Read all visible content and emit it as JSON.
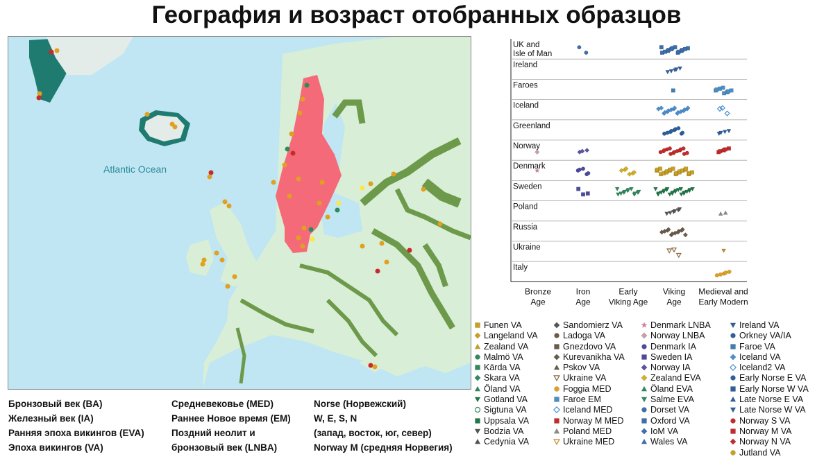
{
  "title": "География и возраст отобранных образцов",
  "map": {
    "ocean_label": "Atlantic Ocean",
    "colors": {
      "sea": "#bfe6f2",
      "land": "#d9eed7",
      "ice": "#e3ece8",
      "river": "#6c9a4a",
      "scandinavia": "#f56a78",
      "greenland_coast": "#1f7a70"
    }
  },
  "period_legend": {
    "col1": [
      "Бронзовый век (BA)",
      "Железный век (IA)",
      "Ранняя эпоха викингов (EVA)",
      "Эпоха викингов (VA)"
    ],
    "col2": [
      "Средневековье (MED)",
      "Раннее Новое время (EM)",
      "Поздний неолит и",
      "бронзовый век (LNBA)"
    ],
    "col3": [
      "Norse (Норвежский)",
      "W, E, S, N",
      "(запад, восток, юг, север)",
      "Norway M (средняя Норвегия)"
    ]
  },
  "chart_data": {
    "type": "scatter",
    "categories": [
      "Bronze Age",
      "Iron Age",
      "Early Viking Age",
      "Viking Age",
      "Medieval and Early Modern"
    ],
    "rows": [
      {
        "label": "UK and Isle of Man",
        "points": [
          {
            "period": "Iron Age",
            "count": 2,
            "color": "#3d6fae",
            "shape": "circle"
          },
          {
            "period": "Viking Age",
            "count": 14,
            "color": "#3d6fae",
            "shape": "square"
          }
        ]
      },
      {
        "label": "Ireland",
        "points": [
          {
            "period": "Viking Age",
            "count": 5,
            "color": "#2f5f9f",
            "shape": "triangle-down"
          }
        ]
      },
      {
        "label": "Faroes",
        "points": [
          {
            "period": "Viking Age",
            "count": 1,
            "color": "#3d7fb5",
            "shape": "square"
          },
          {
            "period": "Medieval and Early Modern",
            "count": 8,
            "color": "#4a90c8",
            "shape": "square"
          }
        ]
      },
      {
        "label": "Iceland",
        "points": [
          {
            "period": "Viking Age",
            "count": 16,
            "color": "#4a8fd0",
            "shape": "diamond"
          },
          {
            "period": "Medieval and Early Modern",
            "count": 3,
            "color": "#4a8fd0",
            "shape": "diamond-open"
          }
        ]
      },
      {
        "label": "Greenland",
        "points": [
          {
            "period": "Viking Age",
            "count": 9,
            "color": "#2c5f9e",
            "shape": "circle"
          },
          {
            "period": "Medieval and Early Modern",
            "count": 4,
            "color": "#2c5f9e",
            "shape": "triangle-down"
          }
        ]
      },
      {
        "label": "Norway",
        "points": [
          {
            "period": "Bronze Age",
            "count": 1,
            "color": "#c9a0a8",
            "shape": "diamond"
          },
          {
            "period": "Iron Age",
            "count": 3,
            "color": "#5b55a3",
            "shape": "diamond"
          },
          {
            "period": "Viking Age",
            "count": 14,
            "color": "#c62a2a",
            "shape": "circle"
          },
          {
            "period": "Medieval and Early Modern",
            "count": 5,
            "color": "#c62a2a",
            "shape": "square"
          }
        ]
      },
      {
        "label": "Denmark",
        "points": [
          {
            "period": "Bronze Age",
            "count": 1,
            "color": "#e27aa8",
            "shape": "star"
          },
          {
            "period": "Iron Age",
            "count": 5,
            "color": "#4d4aa0",
            "shape": "circle"
          },
          {
            "period": "Early Viking Age",
            "count": 6,
            "color": "#d4b020",
            "shape": "diamond"
          },
          {
            "period": "Viking Age",
            "count": 20,
            "color": "#c9a020",
            "shape": "square"
          }
        ]
      },
      {
        "label": "Sweden",
        "points": [
          {
            "period": "Iron Age",
            "count": 3,
            "color": "#4a4aa0",
            "shape": "square"
          },
          {
            "period": "Early Viking Age",
            "count": 12,
            "color": "#2f8a5c",
            "shape": "triangle-down"
          },
          {
            "period": "Viking Age",
            "count": 22,
            "color": "#1e7a45",
            "shape": "triangle-down"
          }
        ]
      },
      {
        "label": "Poland",
        "points": [
          {
            "period": "Viking Age",
            "count": 6,
            "color": "#555555",
            "shape": "triangle-down"
          },
          {
            "period": "Medieval and Early Modern",
            "count": 2,
            "color": "#8a8a8a",
            "shape": "triangle"
          }
        ]
      },
      {
        "label": "Russia",
        "points": [
          {
            "period": "Viking Age",
            "count": 12,
            "color": "#6a5a4a",
            "shape": "diamond"
          }
        ]
      },
      {
        "label": "Ukraine",
        "points": [
          {
            "period": "Viking Age",
            "count": 3,
            "color": "#8a6a3a",
            "shape": "triangle-down-open"
          },
          {
            "period": "Medieval and Early Modern",
            "count": 1,
            "color": "#c98a2a",
            "shape": "triangle-down"
          }
        ]
      },
      {
        "label": "Italy",
        "points": [
          {
            "period": "Medieval and Early Modern",
            "count": 5,
            "color": "#e0a020",
            "shape": "circle"
          }
        ]
      }
    ]
  },
  "group_legend": [
    [
      {
        "label": "Funen VA",
        "shape": "square",
        "color": "#c9a020"
      },
      {
        "label": "Langeland VA",
        "shape": "diamond",
        "color": "#c9a020"
      },
      {
        "label": "Zealand VA",
        "shape": "triangle",
        "color": "#c9a020"
      },
      {
        "label": "Malmö VA",
        "shape": "circle",
        "color": "#2f8a5c"
      },
      {
        "label": "Kärda VA",
        "shape": "square",
        "color": "#2f8a5c"
      },
      {
        "label": "Skara VA",
        "shape": "diamond",
        "color": "#2f8a5c"
      },
      {
        "label": "Öland VA",
        "shape": "triangle",
        "color": "#2f8a5c"
      },
      {
        "label": "Gotland VA",
        "shape": "triangle-down",
        "color": "#1e7a45"
      },
      {
        "label": "Sigtuna VA",
        "shape": "circle-open",
        "color": "#2f8a5c"
      },
      {
        "label": "Uppsala VA",
        "shape": "square",
        "color": "#1e7a45"
      },
      {
        "label": "Bodzia VA",
        "shape": "triangle-down",
        "color": "#555555"
      },
      {
        "label": "Cedynia VA",
        "shape": "triangle",
        "color": "#555555"
      }
    ],
    [
      {
        "label": "Sandomierz VA",
        "shape": "diamond",
        "color": "#555555"
      },
      {
        "label": "Ladoga VA",
        "shape": "circle",
        "color": "#6a5a4a"
      },
      {
        "label": "Gnezdovo VA",
        "shape": "square",
        "color": "#6a5a4a"
      },
      {
        "label": "Kurevanikha VA",
        "shape": "diamond",
        "color": "#6a5a4a"
      },
      {
        "label": "Pskov VA",
        "shape": "triangle",
        "color": "#6a5a4a"
      },
      {
        "label": "Ukraine VA",
        "shape": "triangle-down-open",
        "color": "#8a6a3a"
      },
      {
        "label": "Foggia MED",
        "shape": "circle",
        "color": "#e0a020"
      },
      {
        "label": "Faroe EM",
        "shape": "square",
        "color": "#4a90c8"
      },
      {
        "label": "Iceland MED",
        "shape": "diamond-open",
        "color": "#4a8fd0"
      },
      {
        "label": "Norway M MED",
        "shape": "square",
        "color": "#c62a2a"
      },
      {
        "label": "Poland MED",
        "shape": "triangle",
        "color": "#8a8a8a"
      },
      {
        "label": "Ukraine MED",
        "shape": "triangle-down-open",
        "color": "#c98a2a"
      }
    ],
    [
      {
        "label": "Denmark LNBA",
        "shape": "star",
        "color": "#e27aa8"
      },
      {
        "label": "Norway LNBA",
        "shape": "diamond",
        "color": "#c9a0a8"
      },
      {
        "label": "Denmark IA",
        "shape": "circle",
        "color": "#4d4aa0"
      },
      {
        "label": "Sweden IA",
        "shape": "square",
        "color": "#4a4aa0"
      },
      {
        "label": "Norway IA",
        "shape": "diamond",
        "color": "#5b55a3"
      },
      {
        "label": "Zealand EVA",
        "shape": "diamond",
        "color": "#d4b020"
      },
      {
        "label": "Öland EVA",
        "shape": "triangle",
        "color": "#2f8a5c"
      },
      {
        "label": "Salme EVA",
        "shape": "triangle-down",
        "color": "#2f8a5c"
      },
      {
        "label": "Dorset VA",
        "shape": "circle",
        "color": "#3d6fae"
      },
      {
        "label": "Oxford VA",
        "shape": "square",
        "color": "#3d6fae"
      },
      {
        "label": "IoM VA",
        "shape": "diamond",
        "color": "#3d6fae"
      },
      {
        "label": "Wales VA",
        "shape": "triangle",
        "color": "#3d6fae"
      }
    ],
    [
      {
        "label": "Ireland VA",
        "shape": "triangle-down",
        "color": "#2f5f9f"
      },
      {
        "label": "Orkney VA/IA",
        "shape": "circle",
        "color": "#2f5f9f"
      },
      {
        "label": "Faroe VA",
        "shape": "square",
        "color": "#3d7fb5"
      },
      {
        "label": "Iceland VA",
        "shape": "diamond",
        "color": "#4a8fd0"
      },
      {
        "label": "Iceland2 VA",
        "shape": "diamond-open",
        "color": "#4a8fd0"
      },
      {
        "label": "Early Norse E VA",
        "shape": "circle",
        "color": "#2c5f9e"
      },
      {
        "label": "Early Norse W VA",
        "shape": "square",
        "color": "#2c5f9e"
      },
      {
        "label": "Late Norse E VA",
        "shape": "triangle",
        "color": "#2c5f9e"
      },
      {
        "label": "Late Norse W VA",
        "shape": "triangle-down",
        "color": "#2c5f9e"
      },
      {
        "label": "Norway S VA",
        "shape": "circle",
        "color": "#c62a2a"
      },
      {
        "label": "Norway M VA",
        "shape": "square",
        "color": "#c62a2a"
      },
      {
        "label": "Norway N VA",
        "shape": "diamond",
        "color": "#c62a2a"
      },
      {
        "label": "Jutland VA",
        "shape": "circle",
        "color": "#c9a020"
      }
    ]
  ]
}
